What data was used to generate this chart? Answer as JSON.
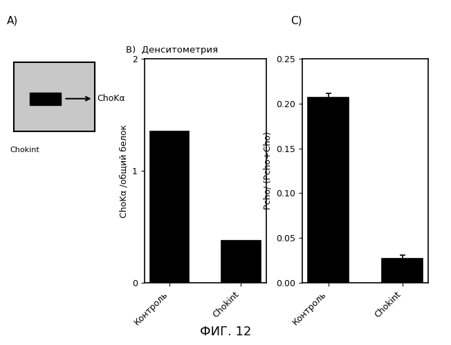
{
  "panel_A_label": "А)",
  "panel_B_label": "В)  Денситометрия",
  "panel_C_label": "C)",
  "fig_label": "ФИГ. 12",
  "panel_B": {
    "categories": [
      "Контроль",
      "Chokint"
    ],
    "values": [
      1.35,
      0.38
    ],
    "ylim": [
      0,
      2
    ],
    "yticks": [
      0,
      1,
      2
    ],
    "ylabel": "ChoKα /общий белок",
    "bar_color": "#000000",
    "border_color": "#000000"
  },
  "panel_C": {
    "categories": [
      "Контроль",
      "Chokint"
    ],
    "values": [
      0.207,
      0.027
    ],
    "errors": [
      0.004,
      0.004
    ],
    "ylim": [
      0.0,
      0.25
    ],
    "yticks": [
      0.0,
      0.05,
      0.1,
      0.15,
      0.2,
      0.25
    ],
    "ylabel": "Pcho/ (Pcho+Cho)",
    "bar_color": "#000000",
    "border_color": "#000000"
  },
  "choka_label": "ChoKα",
  "panel_A_sublabel": "Chokint",
  "bg_color": "#ffffff",
  "text_color": "#000000",
  "gray_color": "#c8c8c8"
}
